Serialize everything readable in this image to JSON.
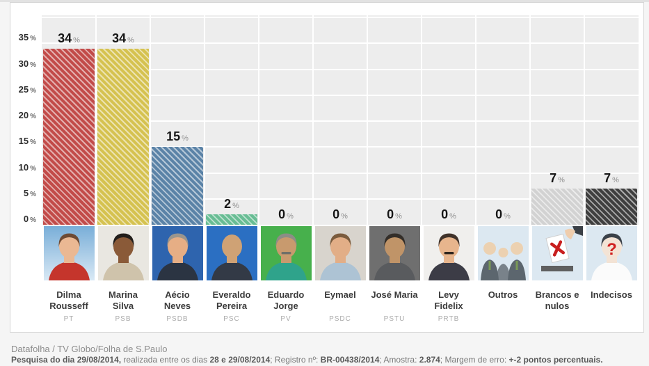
{
  "colors": {
    "plot_bg": "#ededed",
    "grid": "#ffffff",
    "card_border": "#d5d5d5",
    "value_number": "#161616",
    "value_percent_sign": "#8f8f8f",
    "candidate_name": "#3b3b3b",
    "party_label": "#ababab"
  },
  "chart_data": {
    "type": "bar",
    "title": "",
    "xlabel": "",
    "ylabel": "%",
    "ylim": [
      0,
      40
    ],
    "yticks": [
      0,
      5,
      10,
      15,
      20,
      25,
      30,
      35
    ],
    "ytick_suffix": "%",
    "grid": true,
    "legend": false,
    "categories": [
      "Dilma Rousseff",
      "Marina Silva",
      "Aécio Neves",
      "Everaldo Pereira",
      "Eduardo Jorge",
      "Eymael",
      "José Maria",
      "Levy Fidelix",
      "Outros",
      "Brancos e nulos",
      "Indecisos"
    ],
    "values": [
      34,
      34,
      15,
      2,
      0,
      0,
      0,
      0,
      0,
      7,
      7
    ],
    "value_suffix": "%",
    "parties": [
      "PT",
      "PSB",
      "PSDB",
      "PSC",
      "PV",
      "PSDC",
      "PSTU",
      "PRTB",
      "",
      "",
      ""
    ],
    "bar_colors": [
      "#c24b49",
      "#d5c250",
      "#5b83a7",
      "#68bd94",
      null,
      null,
      null,
      null,
      null,
      "#d2d2d2",
      "#3f3f3f"
    ],
    "bar_pattern": "diagonal-hatch"
  },
  "columns": [
    {
      "id": "dilma-rousseff",
      "name_lines": [
        "Dilma",
        "Rousseff"
      ],
      "party": "PT",
      "value": 34,
      "bar_color": "#c24b49",
      "avatar": {
        "kind": "person",
        "bg": [
          "#79aed8",
          "#d9e9f5"
        ],
        "skin": "#eab893",
        "hair": "#6e4b34",
        "shirt": "#c5352c"
      }
    },
    {
      "id": "marina-silva",
      "name_lines": [
        "Marina",
        "Silva"
      ],
      "party": "PSB",
      "value": 34,
      "bar_color": "#d5c250",
      "avatar": {
        "kind": "person",
        "bg": "#e9e7e1",
        "skin": "#8a5a38",
        "hair": "#221e1b",
        "shirt": "#cfc3ab"
      }
    },
    {
      "id": "aecio-neves",
      "name_lines": [
        "Aécio",
        "Neves"
      ],
      "party": "PSDB",
      "value": 15,
      "bar_color": "#5b83a7",
      "avatar": {
        "kind": "person",
        "bg": "#2e64ae",
        "skin": "#e6ae85",
        "hair": "#9b958d",
        "shirt": "#2b3442"
      }
    },
    {
      "id": "everaldo-pereira",
      "name_lines": [
        "Everaldo",
        "Pereira"
      ],
      "party": "PSC",
      "value": 2,
      "bar_color": "#68bd94",
      "avatar": {
        "kind": "person",
        "bg": "#2b6fc2",
        "skin": "#cfa275",
        "bald": true,
        "shirt": "#333a46"
      }
    },
    {
      "id": "eduardo-jorge",
      "name_lines": [
        "Eduardo",
        "Jorge"
      ],
      "party": "PV",
      "value": 0,
      "bar_color": null,
      "avatar": {
        "kind": "person",
        "bg": "#47b04c",
        "skin": "#c89a6e",
        "hair": "#8d8d86",
        "mustache": "#6f6f68",
        "shirt": "#2fa38b"
      }
    },
    {
      "id": "eymael",
      "name_lines": [
        "Eymael"
      ],
      "party": "PSDC",
      "value": 0,
      "bar_color": null,
      "avatar": {
        "kind": "person",
        "bg": "#d8d4cd",
        "skin": "#e2ae87",
        "hair": "#7b5c3e",
        "shirt": "#adc3d4"
      }
    },
    {
      "id": "jose-maria",
      "name_lines": [
        "José Maria"
      ],
      "party": "PSTU",
      "value": 0,
      "bar_color": null,
      "avatar": {
        "kind": "person",
        "bg": "#6f6f6f",
        "skin": "#c09468",
        "hair": "#332e29",
        "shirt": "#595b5e"
      }
    },
    {
      "id": "levy-fidelix",
      "name_lines": [
        "Levy",
        "Fidelix"
      ],
      "party": "PRTB",
      "value": 0,
      "bar_color": null,
      "avatar": {
        "kind": "person",
        "bg": "#f0efed",
        "skin": "#e7b58d",
        "hair": "#40322a",
        "mustache": "#30261e",
        "shirt": "#3c3c46"
      }
    },
    {
      "id": "outros",
      "name_lines": [
        "Outros"
      ],
      "party": "",
      "value": 0,
      "bar_color": null,
      "avatar": {
        "kind": "group",
        "bg": "#dce8f1",
        "skin": "#ecd1b1",
        "suit": "#5c666e",
        "suit2": "#79828a",
        "tie": "#7a9a56"
      }
    },
    {
      "id": "brancos-e-nulos",
      "name_lines": [
        "Brancos e",
        "nulos"
      ],
      "party": "",
      "value": 7,
      "bar_color": "#d2d2d2",
      "avatar": {
        "kind": "ballot",
        "bg": "#dce8f1",
        "slot": "#5f5f5f",
        "card": "#ffffff",
        "x": "#c81e1e",
        "hand": "#efcdad",
        "sleeve": "#3b4046"
      }
    },
    {
      "id": "indecisos",
      "name_lines": [
        "Indecisos"
      ],
      "party": "",
      "value": 7,
      "bar_color": "#3f3f3f",
      "avatar": {
        "kind": "question",
        "bg": "#dce8f1",
        "skin": "#f3e3d5",
        "hair": "#3a4149",
        "shirt": "#fbfbfb",
        "mark": "#d01f1f"
      }
    }
  ],
  "footer": {
    "source": "Datafolha / TV Globo/Folha de S.Paulo",
    "details_segments": [
      {
        "text": "Pesquisa do dia 29/08/2014,",
        "bold": true
      },
      {
        "text": " realizada entre os dias ",
        "bold": false
      },
      {
        "text": "28 e 29/08/2014",
        "bold": true
      },
      {
        "text": "; Registro nº: ",
        "bold": false
      },
      {
        "text": "BR-00438/2014",
        "bold": true
      },
      {
        "text": "; Amostra: ",
        "bold": false
      },
      {
        "text": "2.874",
        "bold": true
      },
      {
        "text": "; Margem de erro: ",
        "bold": false
      },
      {
        "text": "+-2 pontos percentuais.",
        "bold": true
      }
    ]
  }
}
